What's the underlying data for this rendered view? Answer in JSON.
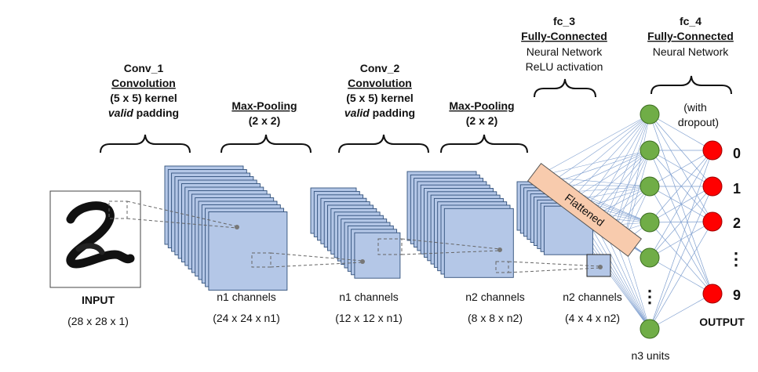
{
  "layers": {
    "input": {
      "name": "INPUT",
      "dims": "(28 x 28 x 1)"
    },
    "conv1": {
      "name": "Conv_1",
      "op": "Convolution",
      "kernel": "(5 x 5) kernel",
      "padding_em": "valid",
      "padding_rest": " padding",
      "channels": "n1 channels",
      "dims": "(24 x 24 x n1)"
    },
    "pool1": {
      "name": "Max-Pooling",
      "size": "(2 x 2)",
      "channels": "n1 channels",
      "dims": "(12 x 12 x n1)"
    },
    "conv2": {
      "name": "Conv_2",
      "op": "Convolution",
      "kernel": "(5 x 5) kernel",
      "padding_em": "valid",
      "padding_rest": " padding",
      "channels": "n2 channels",
      "dims": "(8 x 8 x n2)"
    },
    "pool2": {
      "name": "Max-Pooling",
      "size": "(2 x 2)",
      "channels": "n2 channels",
      "dims": "(4 x 4 x n2)"
    },
    "flatten": {
      "label": "Flattened"
    },
    "fc3": {
      "name": "fc_3",
      "type": "Fully-Connected",
      "desc1": "Neural Network",
      "desc2": "ReLU activation",
      "units": "n3 units"
    },
    "fc4": {
      "name": "fc_4",
      "type": "Fully-Connected",
      "desc1": "Neural Network",
      "note1": "(with",
      "note2": "dropout)"
    },
    "output": {
      "label": "OUTPUT",
      "digits": [
        "0",
        "1",
        "2",
        "9"
      ],
      "ellipsis": "⋮"
    }
  },
  "colors": {
    "feature_map": "#b4c7e7",
    "feature_map_edge": "#2f4f7a",
    "flatten_fill": "#f8cbad",
    "hidden_node": "#70ad47",
    "output_node": "#ff0000",
    "connection": "#7f9fcf"
  }
}
